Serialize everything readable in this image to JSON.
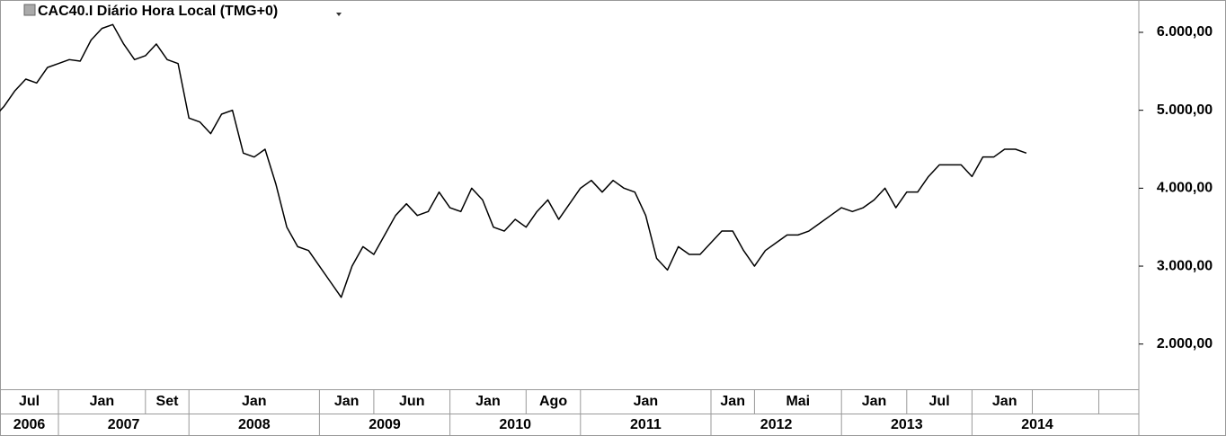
{
  "chart_data": {
    "type": "line",
    "title": "CAC40.I Diário Hora Local (TMG+0)",
    "x": [
      "2006-07",
      "2006-08",
      "2006-09",
      "2006-10",
      "2006-11",
      "2006-12",
      "2007-01",
      "2007-02",
      "2007-03",
      "2007-04",
      "2007-05",
      "2007-06",
      "2007-07",
      "2007-08",
      "2007-09",
      "2007-10",
      "2007-11",
      "2007-12",
      "2008-01",
      "2008-02",
      "2008-03",
      "2008-04",
      "2008-05",
      "2008-06",
      "2008-07",
      "2008-08",
      "2008-09",
      "2008-10",
      "2008-11",
      "2008-12",
      "2009-01",
      "2009-02",
      "2009-03",
      "2009-04",
      "2009-05",
      "2009-06",
      "2009-07",
      "2009-08",
      "2009-09",
      "2009-10",
      "2009-11",
      "2009-12",
      "2010-01",
      "2010-02",
      "2010-03",
      "2010-04",
      "2010-05",
      "2010-06",
      "2010-07",
      "2010-08",
      "2010-09",
      "2010-10",
      "2010-11",
      "2010-12",
      "2011-01",
      "2011-02",
      "2011-03",
      "2011-04",
      "2011-05",
      "2011-06",
      "2011-07",
      "2011-08",
      "2011-09",
      "2011-10",
      "2011-11",
      "2011-12",
      "2012-01",
      "2012-02",
      "2012-03",
      "2012-04",
      "2012-05",
      "2012-06",
      "2012-07",
      "2012-08",
      "2012-09",
      "2012-10",
      "2012-11",
      "2012-12",
      "2013-01",
      "2013-02",
      "2013-03",
      "2013-04",
      "2013-05",
      "2013-06",
      "2013-07",
      "2013-08",
      "2013-09",
      "2013-10",
      "2013-11",
      "2013-12",
      "2014-01",
      "2014-02",
      "2014-03",
      "2014-04",
      "2014-05",
      "2014-06"
    ],
    "series": [
      {
        "name": "CAC40.I",
        "color": "#000000",
        "values": [
          4900,
          5050,
          5250,
          5400,
          5350,
          5550,
          5600,
          5650,
          5630,
          5900,
          6050,
          6100,
          5850,
          5650,
          5700,
          5850,
          5650,
          5600,
          4900,
          4850,
          4700,
          4950,
          5000,
          4450,
          4400,
          4500,
          4050,
          3500,
          3250,
          3200,
          3000,
          2800,
          2600,
          3000,
          3250,
          3150,
          3400,
          3650,
          3800,
          3650,
          3700,
          3950,
          3750,
          3700,
          4000,
          3850,
          3500,
          3450,
          3600,
          3500,
          3700,
          3850,
          3600,
          3800,
          4000,
          4100,
          3950,
          4100,
          4000,
          3950,
          3650,
          3100,
          2950,
          3250,
          3150,
          3150,
          3300,
          3450,
          3450,
          3200,
          3000,
          3200,
          3300,
          3400,
          3400,
          3450,
          3550,
          3650,
          3750,
          3700,
          3750,
          3850,
          4000,
          3750,
          3950,
          3950,
          4150,
          4300,
          4300,
          4300,
          4150,
          4400,
          4400,
          4500,
          4500,
          4450
        ]
      }
    ],
    "ylim": [
      1420,
      6415
    ],
    "yticks": [
      {
        "value": 2000,
        "label": "2.000,00"
      },
      {
        "value": 3000,
        "label": "3.000,00"
      },
      {
        "value": 4000,
        "label": "4.000,00"
      },
      {
        "value": 5000,
        "label": "5.000,00"
      },
      {
        "value": 6000,
        "label": "6.000,00"
      }
    ],
    "xticks": [
      {
        "value": "2006-07",
        "label": "Jul"
      },
      {
        "value": "2007-01",
        "label": "Jan"
      },
      {
        "value": "2007-09",
        "label": "Set"
      },
      {
        "value": "2008-01",
        "label": "Jan"
      },
      {
        "value": "2009-01",
        "label": "Jan"
      },
      {
        "value": "2009-06",
        "label": "Jun"
      },
      {
        "value": "2010-01",
        "label": "Jan"
      },
      {
        "value": "2010-08",
        "label": "Ago"
      },
      {
        "value": "2011-01",
        "label": "Jan"
      },
      {
        "value": "2012-01",
        "label": "Jan"
      },
      {
        "value": "2012-05",
        "label": "Mai"
      },
      {
        "value": "2013-01",
        "label": "Jan"
      },
      {
        "value": "2013-07",
        "label": "Jul"
      },
      {
        "value": "2014-01",
        "label": "Jan"
      }
    ],
    "year_labels": [
      "2006",
      "2007",
      "2008",
      "2009",
      "2010",
      "2011",
      "2012",
      "2013",
      "2014"
    ]
  }
}
